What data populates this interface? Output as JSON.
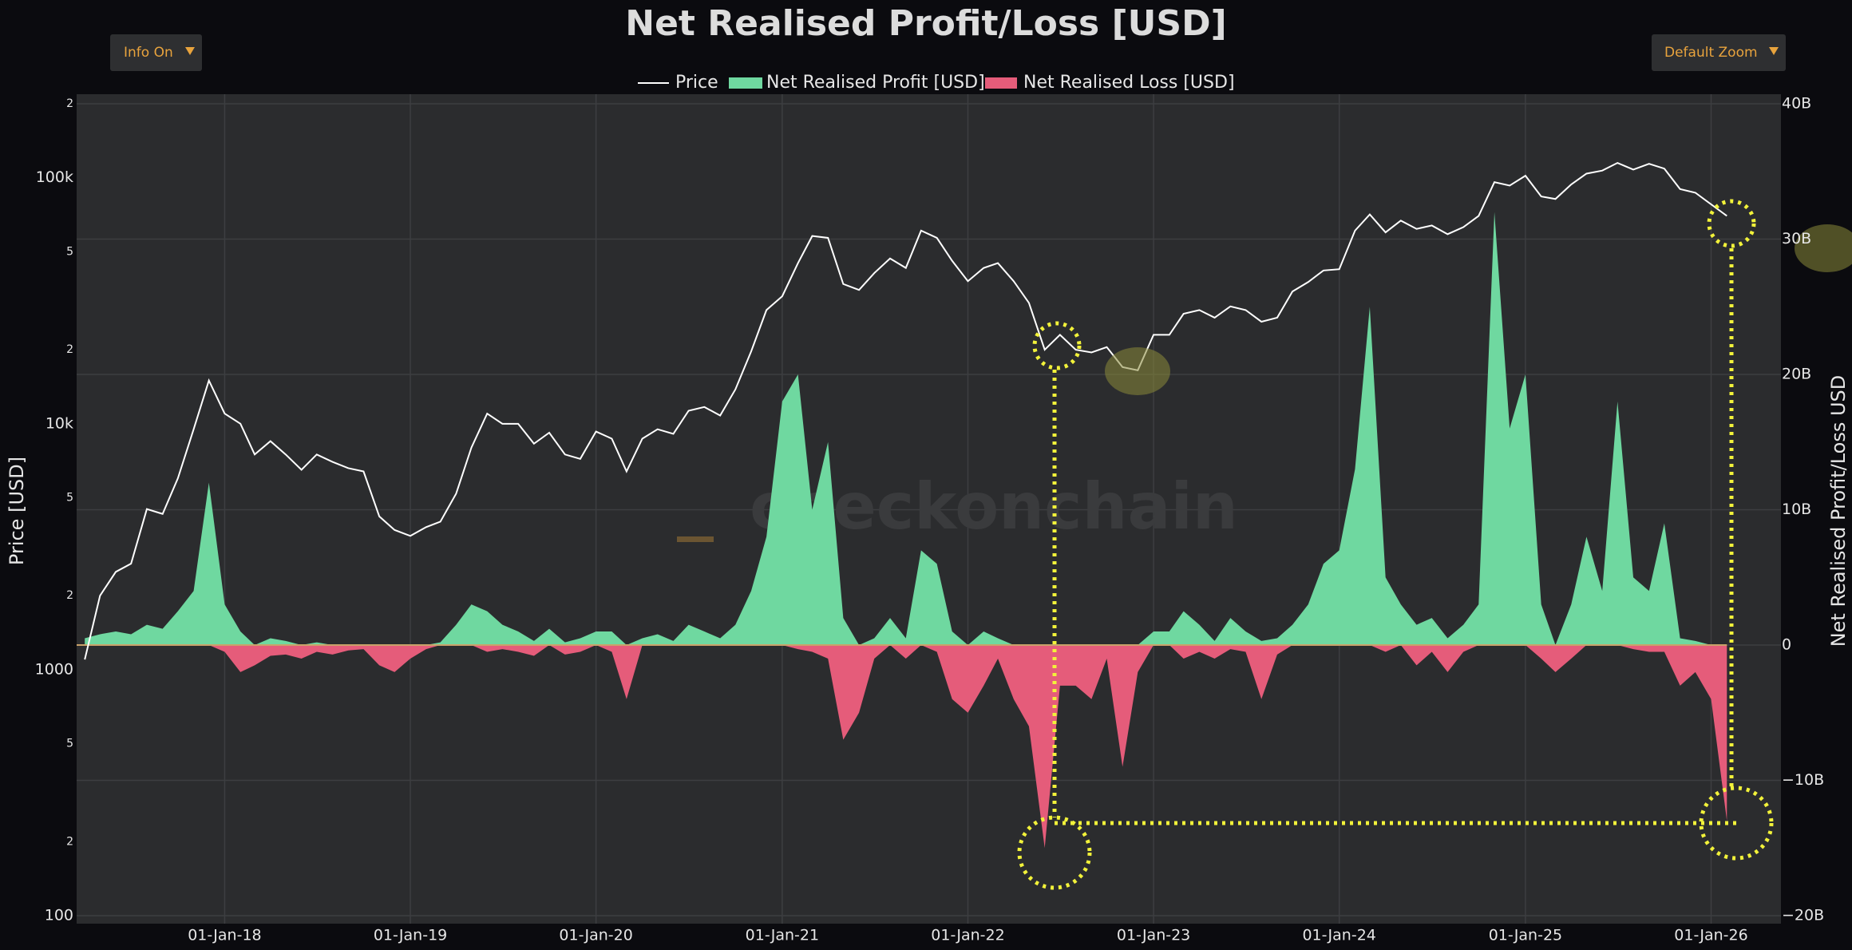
{
  "chart_data": {
    "type": "combo",
    "title": "Net Realised Profit/Loss [USD]",
    "buttons": [
      "Info On",
      "Default Zoom"
    ],
    "watermark": "checkonchain",
    "ylabel": "Price [USD]",
    "y2label": "Net Realised Profit/Loss USD",
    "yscale": "log",
    "grid": true,
    "legend": "top",
    "xlim": [
      "2017-03-16",
      "2026-05-12"
    ],
    "xticks": [
      {
        "value": "2018-01-01",
        "label": "01-Jan-18"
      },
      {
        "value": "2019-01-01",
        "label": "01-Jan-19"
      },
      {
        "value": "2020-01-01",
        "label": "01-Jan-20"
      },
      {
        "value": "2021-01-01",
        "label": "01-Jan-21"
      },
      {
        "value": "2022-01-01",
        "label": "01-Jan-22"
      },
      {
        "value": "2023-01-01",
        "label": "01-Jan-23"
      },
      {
        "value": "2024-01-01",
        "label": "01-Jan-24"
      },
      {
        "value": "2025-01-01",
        "label": "01-Jan-25"
      },
      {
        "value": "2026-01-01",
        "label": "01-Jan-26"
      }
    ],
    "ylim": [
      100,
      200000
    ],
    "yticks": [
      100,
      {
        "value": 200,
        "label": "2"
      },
      {
        "value": 500,
        "label": "5"
      },
      1000,
      {
        "value": 2000,
        "label": "2"
      },
      {
        "value": 5000,
        "label": "5"
      },
      {
        "value": 10000,
        "label": "10k"
      },
      {
        "value": 20000,
        "label": "2"
      },
      {
        "value": 50000,
        "label": "5"
      },
      {
        "value": 100000,
        "label": "100k"
      },
      {
        "value": 200000,
        "label": "2"
      }
    ],
    "y2lim": [
      -20,
      40
    ],
    "y2ticks": [
      {
        "value": -20,
        "label": "−20B"
      },
      {
        "value": -10,
        "label": "−10B"
      },
      0,
      {
        "value": 10,
        "label": "10B"
      },
      {
        "value": 20,
        "label": "20B"
      },
      {
        "value": 30,
        "label": "30B"
      },
      {
        "value": 40,
        "label": "40B"
      }
    ],
    "x": [
      "2017-04-01",
      "2017-05-01",
      "2017-06-01",
      "2017-07-01",
      "2017-08-01",
      "2017-09-01",
      "2017-10-01",
      "2017-11-01",
      "2017-12-01",
      "2018-01-01",
      "2018-02-01",
      "2018-03-01",
      "2018-04-01",
      "2018-05-01",
      "2018-06-01",
      "2018-07-01",
      "2018-08-01",
      "2018-09-01",
      "2018-10-01",
      "2018-11-01",
      "2018-12-01",
      "2019-01-01",
      "2019-02-01",
      "2019-03-01",
      "2019-04-01",
      "2019-05-01",
      "2019-06-01",
      "2019-07-01",
      "2019-08-01",
      "2019-09-01",
      "2019-10-01",
      "2019-11-01",
      "2019-12-01",
      "2020-01-01",
      "2020-02-01",
      "2020-03-01",
      "2020-04-01",
      "2020-05-01",
      "2020-06-01",
      "2020-07-01",
      "2020-08-01",
      "2020-09-01",
      "2020-10-01",
      "2020-11-01",
      "2020-12-01",
      "2021-01-01",
      "2021-02-01",
      "2021-03-01",
      "2021-04-01",
      "2021-05-01",
      "2021-06-01",
      "2021-07-01",
      "2021-08-01",
      "2021-09-01",
      "2021-10-01",
      "2021-11-01",
      "2021-12-01",
      "2022-01-01",
      "2022-02-01",
      "2022-03-01",
      "2022-04-01",
      "2022-05-01",
      "2022-06-01",
      "2022-07-01",
      "2022-08-01",
      "2022-09-01",
      "2022-10-01",
      "2022-11-01",
      "2022-12-01",
      "2023-01-01",
      "2023-02-01",
      "2023-03-01",
      "2023-04-01",
      "2023-05-01",
      "2023-06-01",
      "2023-07-01",
      "2023-08-01",
      "2023-09-01",
      "2023-10-01",
      "2023-11-01",
      "2023-12-01",
      "2024-01-01",
      "2024-02-01",
      "2024-03-01",
      "2024-04-01",
      "2024-05-01",
      "2024-06-01",
      "2024-07-01",
      "2024-08-01",
      "2024-09-01",
      "2024-10-01",
      "2024-11-01",
      "2024-12-01",
      "2025-01-01",
      "2025-02-01",
      "2025-03-01",
      "2025-04-01",
      "2025-05-01",
      "2025-06-01",
      "2025-07-01",
      "2025-08-01",
      "2025-09-01",
      "2025-10-01",
      "2025-11-01",
      "2025-12-01",
      "2026-01-01",
      "2026-02-01"
    ],
    "series": [
      {
        "name": "Price",
        "type": "line",
        "axis": "y",
        "color": "#ffffff",
        "values": [
          1100,
          2000,
          2500,
          2700,
          4500,
          4300,
          6000,
          9500,
          15000,
          11000,
          10000,
          7500,
          8500,
          7500,
          6500,
          7500,
          7000,
          6600,
          6400,
          4200,
          3700,
          3500,
          3800,
          4000,
          5200,
          8000,
          11000,
          10000,
          10000,
          8300,
          9200,
          7500,
          7200,
          9300,
          8700,
          6400,
          8700,
          9500,
          9100,
          11300,
          11700,
          10800,
          13800,
          19700,
          29000,
          33000,
          45000,
          58000,
          57000,
          37000,
          35000,
          41000,
          47000,
          43000,
          61000,
          57000,
          46000,
          38000,
          43000,
          45000,
          38000,
          31000,
          20000,
          23000,
          20000,
          19500,
          20500,
          17000,
          16500,
          23000,
          23000,
          28000,
          29000,
          27000,
          30000,
          29000,
          26000,
          27000,
          34500,
          37700,
          42000,
          42500,
          61000,
          71000,
          60000,
          67000,
          62000,
          64000,
          59000,
          63000,
          70000,
          96000,
          93000,
          102000,
          84000,
          82000,
          94000,
          104000,
          107000,
          115000,
          108000,
          114000,
          109000,
          90000,
          87000,
          78000,
          70000
        ]
      },
      {
        "name": "Net Realised Profit [USD]",
        "type": "area",
        "axis": "y2",
        "color": "#6fd8a0",
        "values": [
          0.5,
          0.8,
          1,
          0.8,
          1.5,
          1.2,
          2.5,
          4,
          12,
          3,
          1,
          0,
          0.5,
          0.3,
          0,
          0.2,
          0,
          0,
          0,
          0,
          0,
          0,
          0,
          0.2,
          1.5,
          3,
          2.5,
          1.5,
          1,
          0.3,
          1.2,
          0.2,
          0.5,
          1,
          1,
          0,
          0.5,
          0.8,
          0.3,
          1.5,
          1,
          0.5,
          1.5,
          4,
          8,
          18,
          20,
          10,
          15,
          2,
          0,
          0.5,
          2,
          0.5,
          7,
          6,
          1,
          0,
          1,
          0.5,
          0,
          0,
          0,
          0,
          0,
          0,
          0,
          0,
          0,
          1,
          1,
          2.5,
          1.5,
          0.3,
          2,
          1,
          0.3,
          0.5,
          1.5,
          3,
          6,
          7,
          13,
          25,
          5,
          3,
          1.5,
          2,
          0.5,
          1.5,
          3,
          32,
          16,
          20,
          3,
          0,
          3,
          8,
          4,
          18,
          5,
          4,
          9,
          0.5,
          0.3,
          0,
          0
        ]
      },
      {
        "name": "Net Realised Loss [USD]",
        "type": "area",
        "axis": "y2",
        "color": "#e55c7a",
        "values": [
          0,
          0,
          0,
          0,
          0,
          0,
          0,
          0,
          0,
          -0.5,
          -2,
          -1.5,
          -0.8,
          -0.7,
          -1,
          -0.5,
          -0.7,
          -0.4,
          -0.3,
          -1.5,
          -2,
          -1,
          -0.3,
          0,
          0,
          0,
          -0.5,
          -0.3,
          -0.5,
          -0.8,
          0,
          -0.7,
          -0.5,
          0,
          -0.5,
          -4,
          0,
          0,
          0,
          0,
          0,
          0,
          0,
          0,
          0,
          0,
          -0.3,
          -0.5,
          -1,
          -7,
          -5,
          -1,
          0,
          -1,
          0,
          -0.5,
          -4,
          -5,
          -3,
          -1,
          -4,
          -6,
          -15,
          -3,
          -3,
          -4,
          -1,
          -9,
          -2,
          0,
          0,
          -1,
          -0.5,
          -1,
          -0.3,
          -0.5,
          -4,
          -0.7,
          0,
          0,
          0,
          0,
          0,
          0,
          -0.5,
          0,
          -1.5,
          -0.5,
          -2,
          -0.5,
          0,
          0,
          0,
          0,
          -1,
          -2,
          -1,
          0,
          0,
          0,
          -0.3,
          -0.5,
          -0.5,
          -3,
          -2,
          -4,
          -13
        ]
      }
    ]
  }
}
